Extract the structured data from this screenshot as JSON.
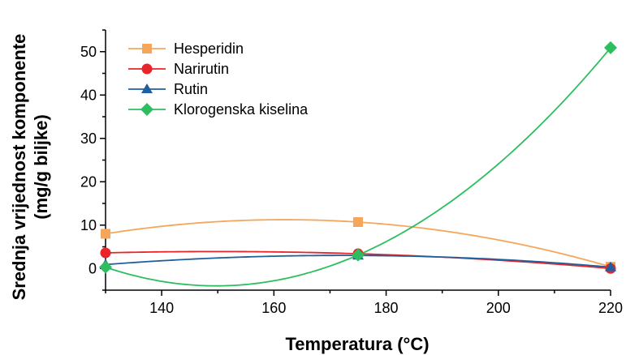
{
  "chart_data": {
    "type": "line",
    "xlabel": "Temperatura (°C)",
    "ylabel_line1": "Srednja vrijednost komponente",
    "ylabel_line2": "(mg/g biljke)",
    "xlim": [
      130,
      220
    ],
    "ylim": [
      -5,
      55
    ],
    "x_ticks": [
      140,
      160,
      180,
      200,
      220
    ],
    "y_ticks": [
      0,
      10,
      20,
      30,
      40,
      50
    ],
    "grid": false,
    "legend_position": "top-left",
    "series": [
      {
        "name": "Hesperidin",
        "color": "#F5A65B",
        "marker": "square",
        "x": [
          130,
          175,
          220
        ],
        "y": [
          8.0,
          10.7,
          0.4
        ]
      },
      {
        "name": "Narirutin",
        "color": "#E8252A",
        "marker": "circle",
        "x": [
          130,
          175,
          220
        ],
        "y": [
          3.6,
          3.4,
          0.0
        ]
      },
      {
        "name": "Rutin",
        "color": "#1F5F9E",
        "marker": "triangle",
        "x": [
          130,
          175,
          220
        ],
        "y": [
          0.9,
          3.0,
          0.3
        ]
      },
      {
        "name": "Klorogenska kiselina",
        "color": "#2DBE60",
        "marker": "diamond",
        "x": [
          130,
          175,
          220
        ],
        "y": [
          0.3,
          3.1,
          50.9
        ]
      }
    ]
  }
}
